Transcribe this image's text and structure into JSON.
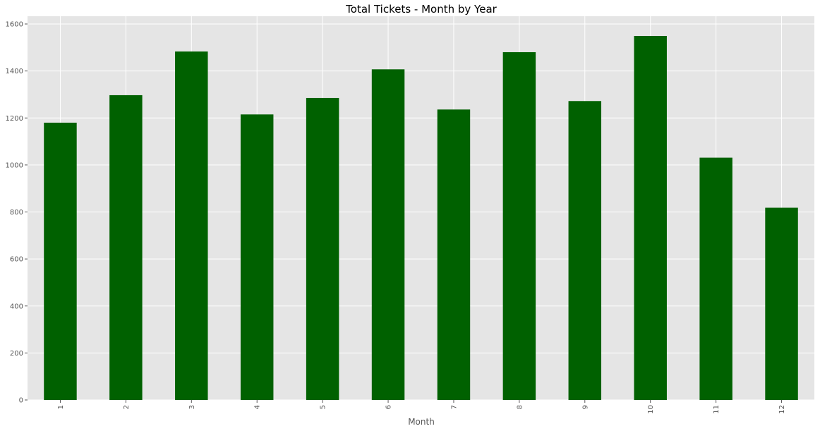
{
  "chart_data": {
    "type": "bar",
    "title": "Total Tickets - Month by Year",
    "xlabel": "Month",
    "ylabel": "",
    "categories": [
      "1",
      "2",
      "3",
      "4",
      "5",
      "6",
      "7",
      "8",
      "9",
      "10",
      "11",
      "12"
    ],
    "values": [
      1180,
      1297,
      1483,
      1215,
      1285,
      1407,
      1236,
      1480,
      1272,
      1549,
      1031,
      818
    ],
    "ylim": [
      0,
      1600
    ],
    "yticks": [
      "0",
      "200",
      "400",
      "600",
      "800",
      "1000",
      "1200",
      "1400",
      "1600"
    ],
    "grid": true,
    "bar_color": "#006100",
    "plot_background": "#e5e5e5",
    "grid_color": "#ffffff"
  }
}
